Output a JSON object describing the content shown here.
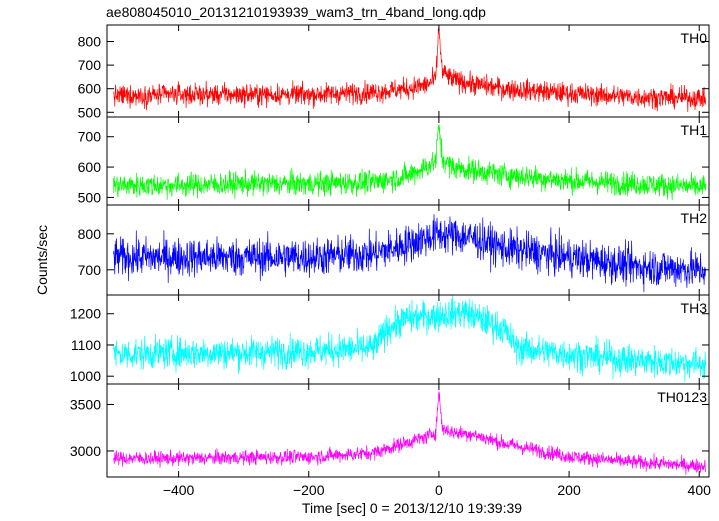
{
  "chart_data": {
    "type": "line",
    "title": "ae808045010_20131210193939_wam3_trn_4band_long.qdp",
    "xlabel": "Time [sec] 0 = 2013/12/10 19:39:39",
    "ylabel": "Counts/sec",
    "xlim": [
      -510,
      415
    ],
    "x_ticks": [
      -400,
      -200,
      0,
      200,
      400
    ],
    "x_tick_labels": [
      "−400",
      "−200",
      "0",
      "200",
      "400"
    ],
    "shared_x": true,
    "grid": false,
    "panels": [
      {
        "name": "TH0",
        "color": "#ff0000",
        "ylim": [
          480,
          870
        ],
        "y_ticks": [
          500,
          600,
          700,
          800
        ],
        "y_tick_labels": [
          "500",
          "600",
          "700",
          "800"
        ],
        "x": [
          -500,
          -400,
          -300,
          -200,
          -100,
          -50,
          -20,
          -5,
          0,
          5,
          20,
          50,
          100,
          200,
          300,
          400
        ],
        "values": [
          570,
          575,
          575,
          575,
          585,
          600,
          615,
          640,
          860,
          670,
          640,
          620,
          600,
          580,
          565,
          560
        ],
        "noise": 32
      },
      {
        "name": "TH1",
        "color": "#00ff00",
        "ylim": [
          475,
          765
        ],
        "y_ticks": [
          500,
          600,
          700
        ],
        "y_tick_labels": [
          "500",
          "600",
          "700"
        ],
        "x": [
          -500,
          -400,
          -300,
          -200,
          -100,
          -50,
          -20,
          -5,
          0,
          5,
          20,
          50,
          100,
          200,
          300,
          400
        ],
        "values": [
          540,
          540,
          545,
          545,
          550,
          570,
          600,
          620,
          740,
          630,
          600,
          590,
          575,
          555,
          545,
          535
        ],
        "noise": 28
      },
      {
        "name": "TH2",
        "color": "#0000ff",
        "ylim": [
          630,
          880
        ],
        "y_ticks": [
          700,
          800
        ],
        "y_tick_labels": [
          "700",
          "800"
        ],
        "x": [
          -500,
          -400,
          -300,
          -200,
          -100,
          -50,
          0,
          50,
          100,
          200,
          300,
          400
        ],
        "values": [
          735,
          735,
          735,
          735,
          745,
          770,
          800,
          790,
          760,
          735,
          710,
          700
        ],
        "noise": 38
      },
      {
        "name": "TH3",
        "color": "#00ffff",
        "ylim": [
          975,
          1260
        ],
        "y_ticks": [
          1000,
          1100,
          1200
        ],
        "y_tick_labels": [
          "1000",
          "1100",
          "1200"
        ],
        "x": [
          -500,
          -400,
          -300,
          -200,
          -100,
          -80,
          -50,
          0,
          40,
          100,
          120,
          200,
          300,
          400
        ],
        "values": [
          1070,
          1075,
          1075,
          1080,
          1090,
          1150,
          1185,
          1195,
          1205,
          1150,
          1090,
          1070,
          1050,
          1040
        ],
        "noise": 36
      },
      {
        "name": "TH0123",
        "color": "#ff00ff",
        "ylim": [
          2720,
          3720
        ],
        "y_ticks": [
          3000,
          3500
        ],
        "y_tick_labels": [
          "3000",
          "3500"
        ],
        "x": [
          -500,
          -400,
          -300,
          -200,
          -100,
          -50,
          -20,
          -5,
          0,
          5,
          20,
          50,
          100,
          200,
          300,
          400
        ],
        "values": [
          2920,
          2920,
          2930,
          2935,
          2980,
          3090,
          3150,
          3200,
          3640,
          3250,
          3200,
          3180,
          3080,
          2940,
          2880,
          2840
        ],
        "noise": 55
      }
    ]
  }
}
